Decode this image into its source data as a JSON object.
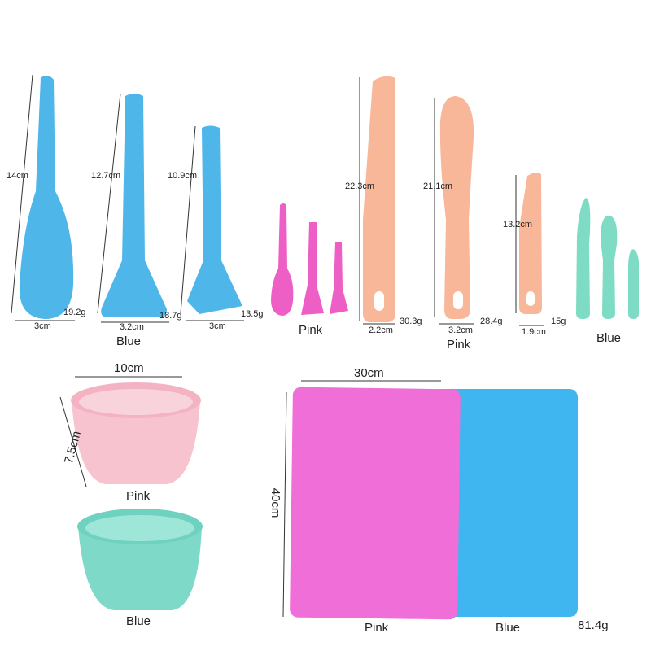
{
  "blue_brushes": {
    "items": [
      {
        "height": "14cm",
        "width": "3cm",
        "weight": "19.2g"
      },
      {
        "height": "12.7cm",
        "width": "3.2cm",
        "weight": "18.7g"
      },
      {
        "height": "10.9cm",
        "width": "3cm",
        "weight": "13.5g"
      }
    ],
    "label": "Blue"
  },
  "pink_mini_brushes": {
    "label": "Pink"
  },
  "pink_spatulas": {
    "items": [
      {
        "height": "22.3cm",
        "width": "2.2cm",
        "weight": "30.3g"
      },
      {
        "height": "21.1cm",
        "width": "3.2cm",
        "weight": "28.4g"
      },
      {
        "height": "13.2cm",
        "width": "1.9cm",
        "weight": "15g"
      }
    ],
    "label": "Pink"
  },
  "green_spatulas": {
    "label": "Blue"
  },
  "bowls": {
    "width": "10cm",
    "height": "7.5cm",
    "labels": [
      "Pink",
      "Blue"
    ]
  },
  "mats": {
    "width": "30cm",
    "height": "40cm",
    "labels": [
      "Pink",
      "Blue"
    ],
    "weight": "81.4g"
  }
}
